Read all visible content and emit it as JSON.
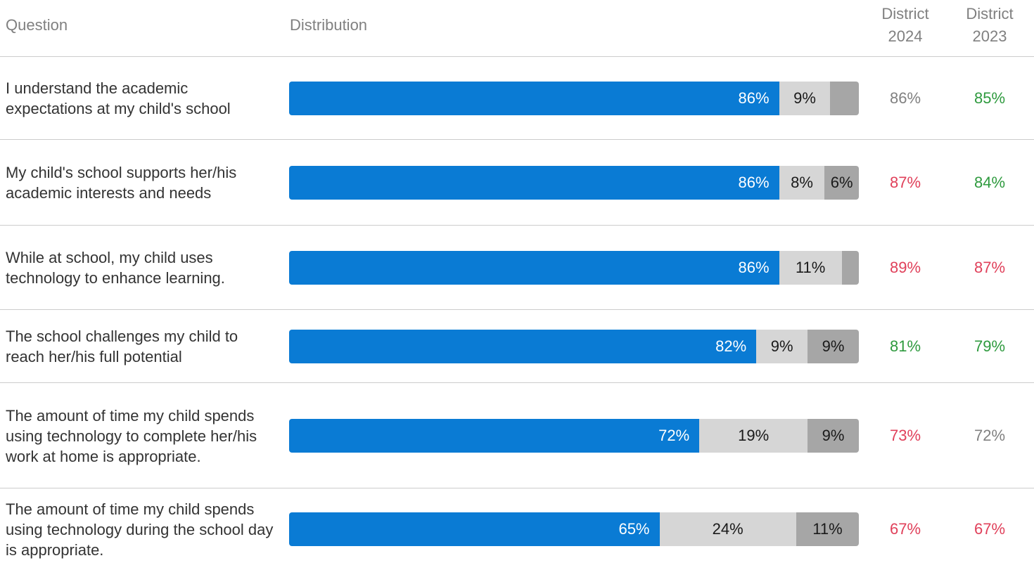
{
  "header": {
    "question": "Question",
    "distribution": "Distribution",
    "district_2024_line1": "District",
    "district_2024_line2": "2024",
    "district_2023_line1": "District",
    "district_2023_line2": "2023"
  },
  "colors": {
    "positive": "#0a7bd4",
    "neutral": "#d6d6d6",
    "negative": "#a6a6a6",
    "higher": "#2e9a3e",
    "lower": "#e0405a",
    "same": "#808080"
  },
  "chart_data": {
    "type": "bar",
    "orientation": "horizontal-stacked",
    "categories": [
      "I understand the academic expectations at my child's school",
      "My child's school supports her/his academic interests and needs",
      "While at school, my child uses technology to enhance learning.",
      "The school challenges my child to reach her/his full potential",
      "The amount of time my child spends using technology to complete her/his work at home is appropriate.",
      "The amount of time my child spends using technology during the school day is appropriate."
    ],
    "series": [
      {
        "values": [
          86,
          86,
          86,
          82,
          72,
          65
        ]
      },
      {
        "values": [
          9,
          8,
          11,
          9,
          19,
          24
        ]
      },
      {
        "values": [
          5,
          6,
          3,
          9,
          9,
          11
        ]
      }
    ],
    "value_labels": [
      [
        "86%",
        "9%",
        ""
      ],
      [
        "86%",
        "8%",
        "6%"
      ],
      [
        "86%",
        "11%",
        ""
      ],
      [
        "82%",
        "9%",
        "9%"
      ],
      [
        "72%",
        "19%",
        "9%"
      ],
      [
        "65%",
        "24%",
        "11%"
      ]
    ],
    "district_2024": [
      {
        "label": "86%",
        "status": "same"
      },
      {
        "label": "87%",
        "status": "lower"
      },
      {
        "label": "89%",
        "status": "lower"
      },
      {
        "label": "81%",
        "status": "higher"
      },
      {
        "label": "73%",
        "status": "lower"
      },
      {
        "label": "67%",
        "status": "lower"
      }
    ],
    "district_2023": [
      {
        "label": "85%",
        "status": "higher"
      },
      {
        "label": "84%",
        "status": "higher"
      },
      {
        "label": "87%",
        "status": "lower"
      },
      {
        "label": "79%",
        "status": "higher"
      },
      {
        "label": "72%",
        "status": "same"
      },
      {
        "label": "67%",
        "status": "lower"
      }
    ],
    "xlim": [
      0,
      100
    ]
  }
}
